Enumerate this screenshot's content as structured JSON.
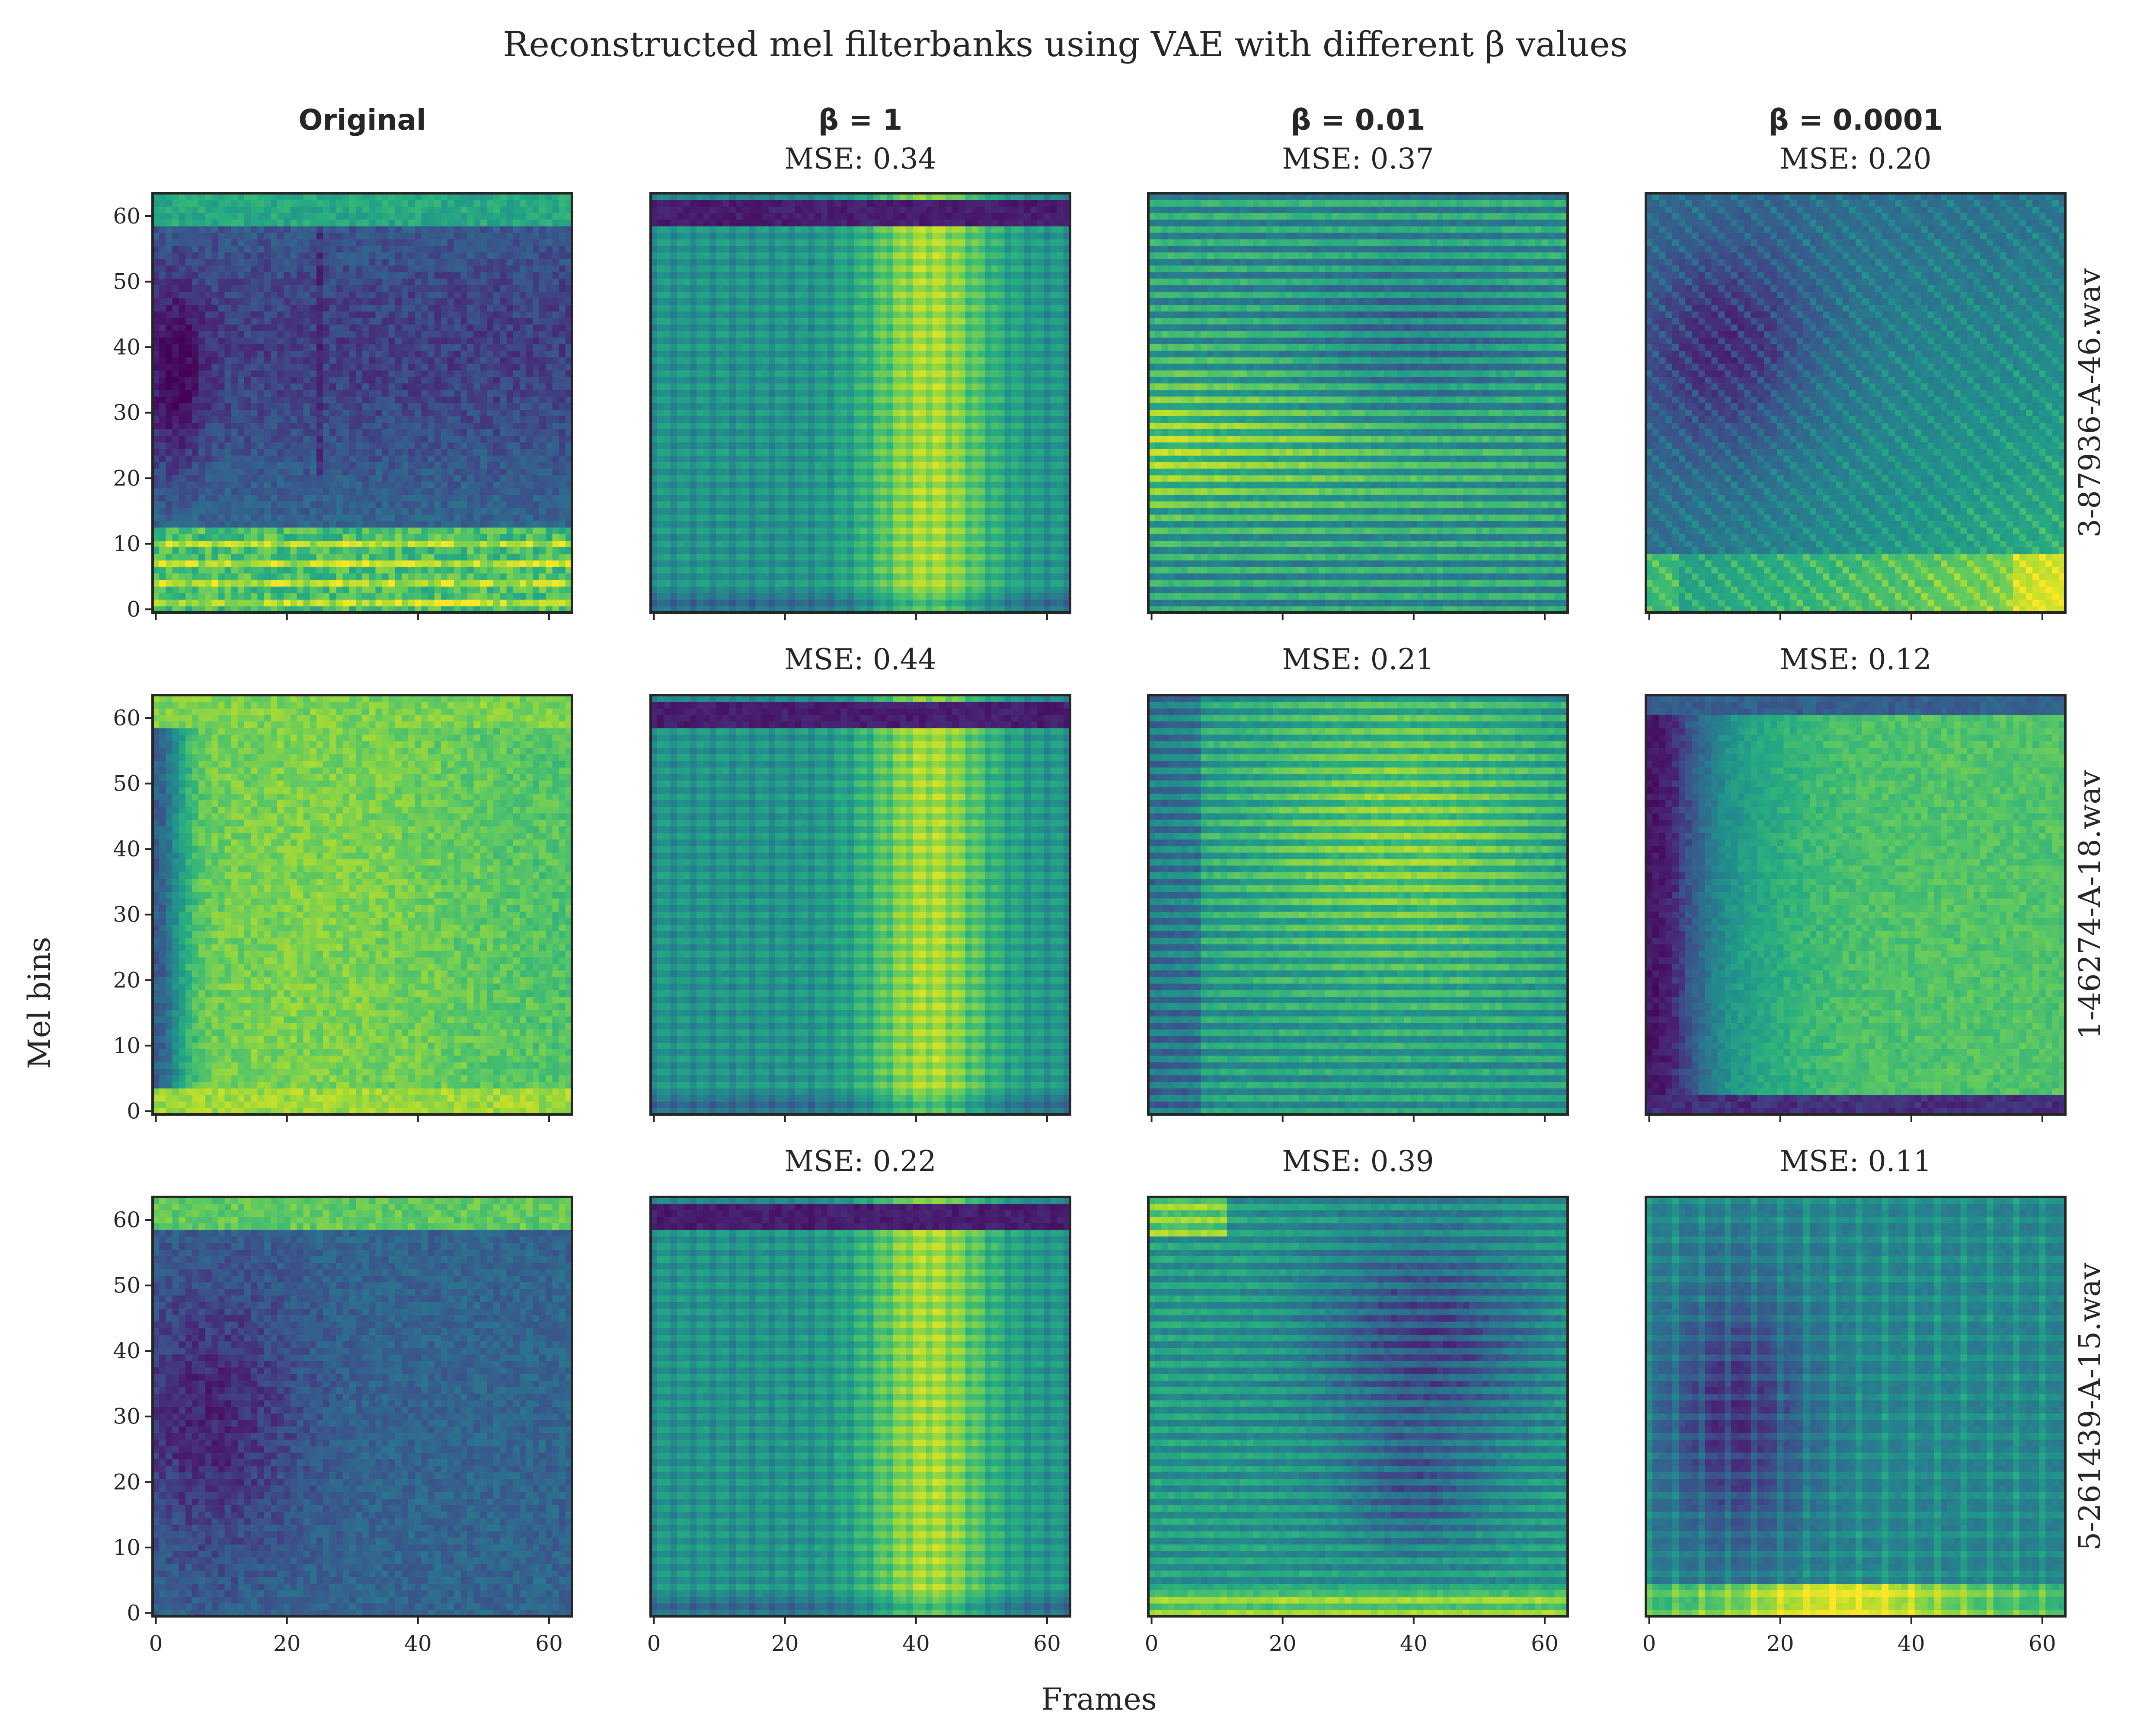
{
  "figure": {
    "title": "Reconstructed mel filterbanks using VAE with different β values",
    "xlabel": "Frames",
    "ylabel": "Mel bins",
    "colormap": "viridis"
  },
  "chart_data": {
    "type": "heatmap",
    "grid": {
      "rows": 3,
      "cols": 4
    },
    "columns": [
      "Original",
      "β = 1",
      "β = 0.01",
      "β = 0.0001"
    ],
    "rows": [
      "3-87936-A-46.wav",
      "1-46274-A-18.wav",
      "5-261439-A-15.wav"
    ],
    "mse_prefix": "MSE: ",
    "mse": [
      [
        null,
        "0.34",
        "0.37",
        "0.20"
      ],
      [
        null,
        "0.44",
        "0.21",
        "0.12"
      ],
      [
        null,
        "0.22",
        "0.39",
        "0.11"
      ]
    ],
    "x_ticks": [
      "0",
      "20",
      "40",
      "60"
    ],
    "y_ticks": [
      "0",
      "10",
      "20",
      "30",
      "40",
      "50",
      "60"
    ],
    "xlim": [
      0,
      63
    ],
    "ylim": [
      0,
      63
    ],
    "matrix_size": [
      64,
      64
    ],
    "colors": {
      "viridis_low": "#440154",
      "viridis_mid": "#21918c",
      "viridis_high": "#fde725"
    }
  }
}
